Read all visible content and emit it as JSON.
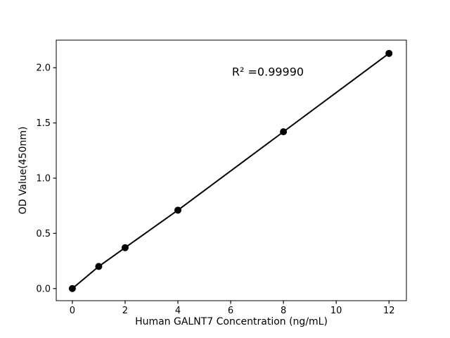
{
  "chart_data": {
    "type": "line",
    "title": "",
    "xlabel": "Human GALNT7 Concentration (ng/mL)",
    "ylabel": "OD Value(450nm)",
    "annotation": "R² =0.99990",
    "x": [
      0,
      1,
      2,
      4,
      8,
      12
    ],
    "y": [
      0.0,
      0.2,
      0.37,
      0.71,
      1.42,
      2.13
    ],
    "xticks": [
      0,
      2,
      4,
      6,
      8,
      10,
      12
    ],
    "xtick_labels": [
      "0",
      "2",
      "4",
      "6",
      "8",
      "10",
      "12"
    ],
    "yticks": [
      0.0,
      0.5,
      1.0,
      1.5,
      2.0
    ],
    "ytick_labels": [
      "0.0",
      "0.5",
      "1.0",
      "1.5",
      "2.0"
    ],
    "xlim": [
      -0.61,
      12.66
    ],
    "ylim": [
      -0.11,
      2.25
    ],
    "line_color": "#000000",
    "marker_color": "#000000",
    "axis_color": "#000000",
    "background": "#ffffff",
    "marker_radius": 5,
    "line_width": 2,
    "grid": false,
    "legend": "none"
  }
}
